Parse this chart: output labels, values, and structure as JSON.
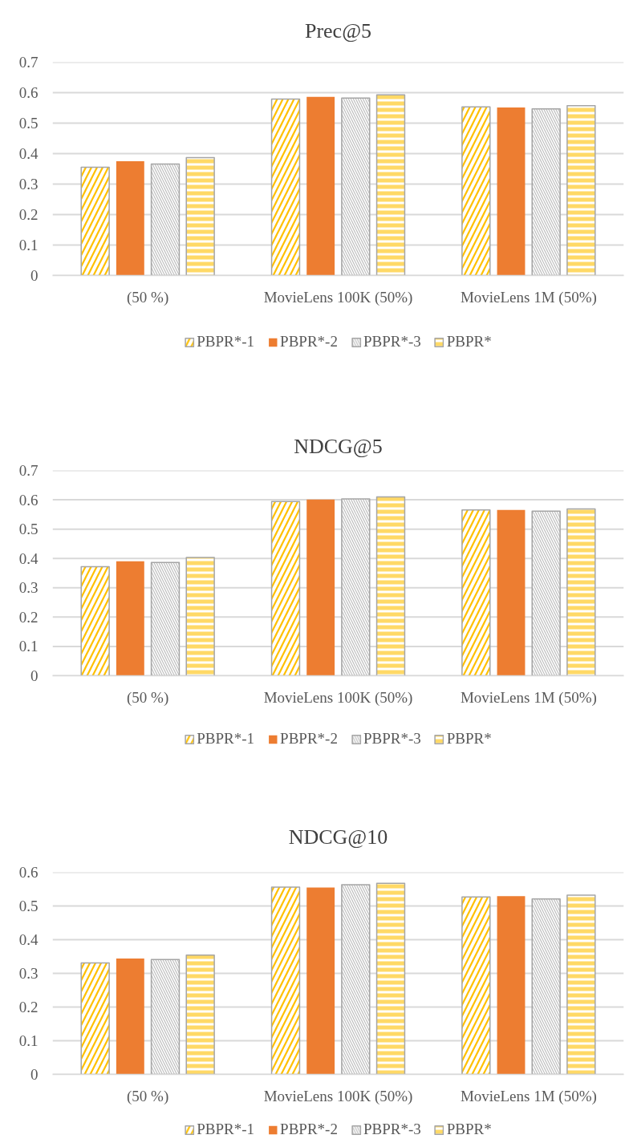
{
  "chart_data": [
    {
      "type": "bar",
      "title": "Prec@5",
      "categories": [
        "(50 %)",
        "MovieLens 100K (50%)",
        "MovieLens 1M (50%)"
      ],
      "series": [
        {
          "name": "PBPR*-1",
          "color": "#ffc000",
          "values": [
            0.355,
            0.579,
            0.553
          ]
        },
        {
          "name": "PBPR*-2",
          "color": "#ed7d31",
          "values": [
            0.375,
            0.586,
            0.551
          ]
        },
        {
          "name": "PBPR*-3",
          "color": "#bfbfbf",
          "values": [
            0.366,
            0.582,
            0.547
          ]
        },
        {
          "name": "PBPR*",
          "color": "#ffd966",
          "values": [
            0.387,
            0.593,
            0.557
          ]
        }
      ],
      "ylim": [
        0,
        0.7
      ],
      "yticks": [
        0,
        0.1,
        0.2,
        0.3,
        0.4,
        0.5,
        0.6,
        0.7
      ],
      "grid": "y",
      "legend": "bottom"
    },
    {
      "type": "bar",
      "title": "NDCG@5",
      "categories": [
        "(50 %)",
        "MovieLens 100K (50%)",
        "MovieLens 1M (50%)"
      ],
      "series": [
        {
          "name": "PBPR*-1",
          "color": "#ffc000",
          "values": [
            0.372,
            0.594,
            0.565
          ]
        },
        {
          "name": "PBPR*-2",
          "color": "#ed7d31",
          "values": [
            0.39,
            0.601,
            0.565
          ]
        },
        {
          "name": "PBPR*-3",
          "color": "#bfbfbf",
          "values": [
            0.386,
            0.603,
            0.561
          ]
        },
        {
          "name": "PBPR*",
          "color": "#ffd966",
          "values": [
            0.403,
            0.61,
            0.569
          ]
        }
      ],
      "ylim": [
        0,
        0.7
      ],
      "yticks": [
        0,
        0.1,
        0.2,
        0.3,
        0.4,
        0.5,
        0.6,
        0.7
      ],
      "grid": "y",
      "legend": "bottom"
    },
    {
      "type": "bar",
      "title": "NDCG@10",
      "categories": [
        "(50 %)",
        "MovieLens 100K (50%)",
        "MovieLens 1M (50%)"
      ],
      "series": [
        {
          "name": "PBPR*-1",
          "color": "#ffc000",
          "values": [
            0.331,
            0.556,
            0.527
          ]
        },
        {
          "name": "PBPR*-2",
          "color": "#ed7d31",
          "values": [
            0.344,
            0.555,
            0.529
          ]
        },
        {
          "name": "PBPR*-3",
          "color": "#bfbfbf",
          "values": [
            0.341,
            0.563,
            0.521
          ]
        },
        {
          "name": "PBPR*",
          "color": "#ffd966",
          "values": [
            0.354,
            0.567,
            0.532
          ]
        }
      ],
      "ylim": [
        0,
        0.6
      ],
      "yticks": [
        0,
        0.1,
        0.2,
        0.3,
        0.4,
        0.5,
        0.6
      ],
      "grid": "y",
      "legend": "bottom"
    }
  ]
}
